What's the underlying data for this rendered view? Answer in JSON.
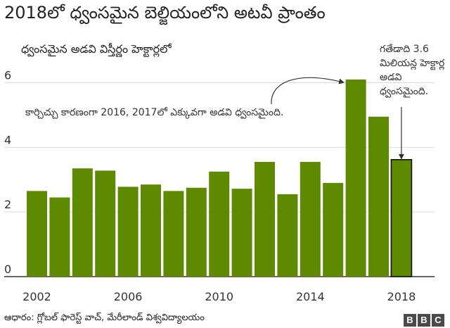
{
  "header": {
    "title": "2018లో ధ్వంసమైన బెల్జియంలోని అటవీ ప్రాంతం",
    "subtitle": "ధ్వంసమైన అడవి విస్తీర్ణం హెక్టార్లలో"
  },
  "annotations": {
    "fires": "కార్చిచ్చు కారణంగా 2016, 2017లో ఎక్కువగా అడవి ధ్వంసమైంది.",
    "last_year": "గతేడాది 3.6 మిలియన్ల హెక్టార్ల అడవి ధ్వంసమైంది."
  },
  "footer": {
    "source": "ఆధారం: గ్లోబల్ ఫారెస్ట్ వాచ్, మేరీలాండ్ విశ్వవిద్యాలయం",
    "logo_letters": [
      "B",
      "B",
      "C"
    ]
  },
  "chart_data": {
    "type": "bar",
    "categories": [
      "2002",
      "2003",
      "2004",
      "2005",
      "2006",
      "2007",
      "2008",
      "2009",
      "2010",
      "2011",
      "2012",
      "2013",
      "2014",
      "2015",
      "2016",
      "2017",
      "2018"
    ],
    "values": [
      2.65,
      2.45,
      3.35,
      3.28,
      2.78,
      2.85,
      2.65,
      2.75,
      3.25,
      2.72,
      3.55,
      2.55,
      3.55,
      2.9,
      6.1,
      4.95,
      3.62
    ],
    "x_tick_labels": [
      "2002",
      "2006",
      "2010",
      "2014",
      "2018"
    ],
    "y_ticks": [
      0,
      2,
      4,
      6
    ],
    "ylim": [
      0,
      6.6
    ],
    "bar_color": "#5d8a00",
    "highlight_category": "2018",
    "highlight_outline": "#111111",
    "grid": true
  }
}
